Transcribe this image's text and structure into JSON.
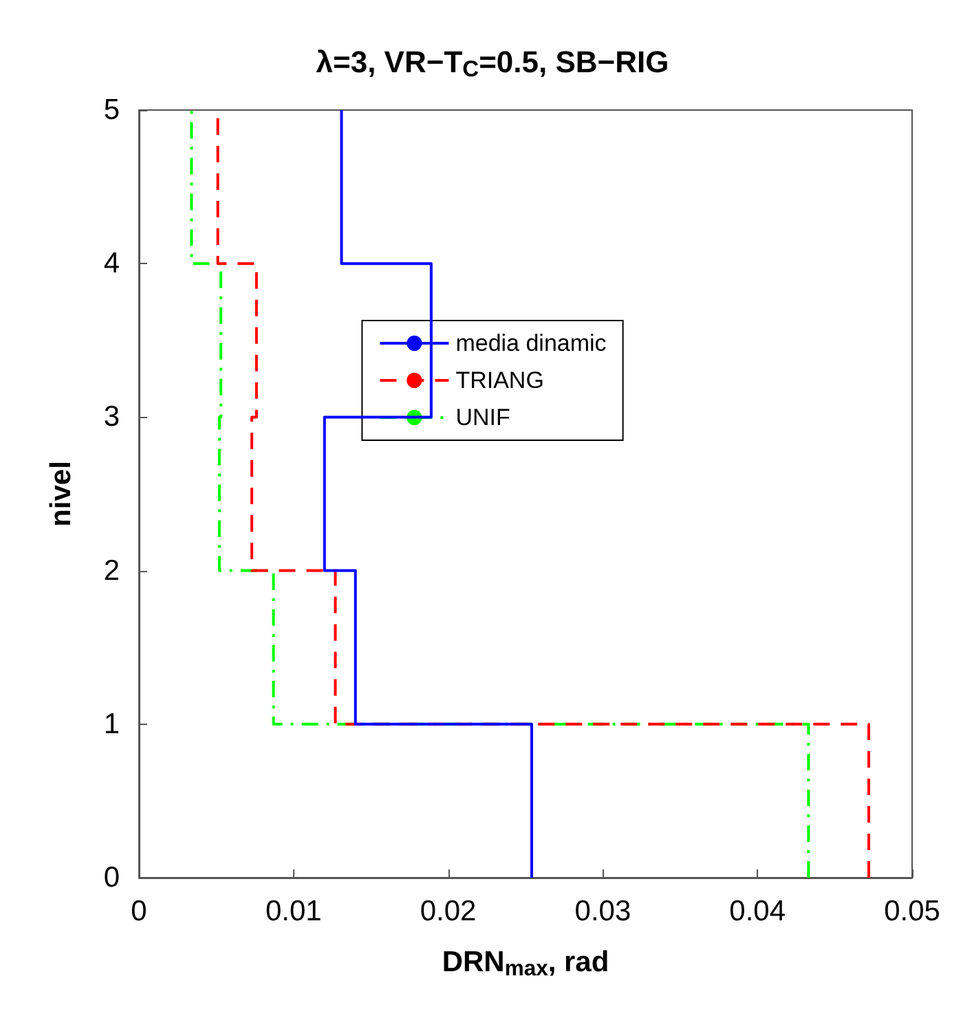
{
  "chart_data": {
    "type": "line",
    "title": "λ=3, VR−T$_{C}$=0.5, SB−RIG",
    "xlabel": "DRN$_{max}$, rad",
    "ylabel": "nivel",
    "xlim": [
      0,
      0.05
    ],
    "xticks": [
      0,
      0.01,
      0.02,
      0.03,
      0.04,
      0.05
    ],
    "ylim": [
      0,
      5
    ],
    "yticks": [
      0,
      1,
      2,
      3,
      4,
      5
    ],
    "grid": false,
    "legend": "top",
    "marker": "none",
    "series": [
      {
        "name": "media dinamic",
        "color": "#0000ff",
        "line_style": "solid",
        "x": [
          0.0254,
          0.0254,
          0.014,
          0.014,
          0.012,
          0.012,
          0.0189,
          0.0189,
          0.0131,
          0.0131
        ],
        "values": [
          0,
          1,
          1,
          2,
          2,
          3,
          3,
          4,
          4,
          5
        ]
      },
      {
        "name": "TRIANG",
        "color": "#ff0000",
        "line_style": "dashed",
        "x": [
          0.0472,
          0.0472,
          0.0127,
          0.0127,
          0.0073,
          0.0073,
          0.0076,
          0.0076,
          0.0051,
          0.0051
        ],
        "values": [
          0,
          1,
          1,
          2,
          2,
          3,
          3,
          4,
          4,
          5
        ]
      },
      {
        "name": "UNIF",
        "color": "#00ff00",
        "line_style": "dashdot",
        "x": [
          0.0433,
          0.0433,
          0.0087,
          0.0087,
          0.0052,
          0.0052,
          0.0053,
          0.0053,
          0.0034,
          0.0034
        ],
        "values": [
          0,
          1,
          1,
          2,
          2,
          3,
          3,
          4,
          4,
          5
        ]
      }
    ]
  }
}
